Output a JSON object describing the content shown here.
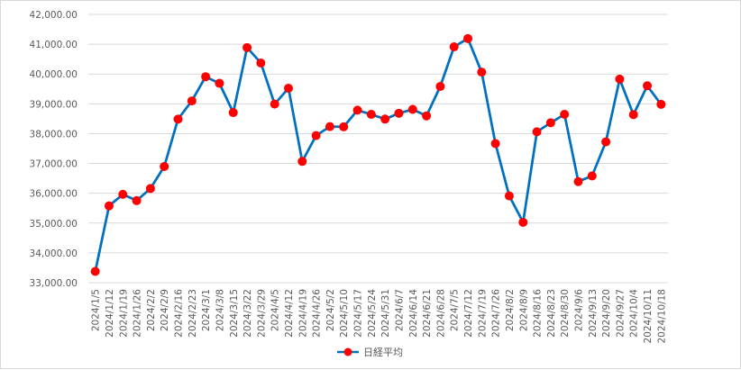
{
  "chart_data": {
    "type": "line",
    "categories": [
      "2024/1/5",
      "2024/1/12",
      "2024/1/19",
      "2024/1/26",
      "2024/2/2",
      "2024/2/9",
      "2024/2/16",
      "2024/2/23",
      "2024/3/1",
      "2024/3/8",
      "2024/3/15",
      "2024/3/22",
      "2024/3/29",
      "2024/4/5",
      "2024/4/12",
      "2024/4/19",
      "2024/4/26",
      "2024/5/2",
      "2024/5/10",
      "2024/5/17",
      "2024/5/24",
      "2024/5/31",
      "2024/6/7",
      "2024/6/14",
      "2024/6/21",
      "2024/6/28",
      "2024/7/5",
      "2024/7/12",
      "2024/7/19",
      "2024/7/26",
      "2024/8/2",
      "2024/8/9",
      "2024/8/16",
      "2024/8/23",
      "2024/8/30",
      "2024/9/6",
      "2024/9/13",
      "2024/9/20",
      "2024/9/27",
      "2024/10/4",
      "2024/10/11",
      "2024/10/18"
    ],
    "series": [
      {
        "name": "日経平均",
        "values": [
          33377,
          35577,
          35963,
          35751,
          36158,
          36897,
          38487,
          39098,
          39910,
          39688,
          38707,
          40888,
          40369,
          38992,
          39523,
          37068,
          37934,
          38236,
          38229,
          38787,
          38646,
          38488,
          38683,
          38814,
          38596,
          39583,
          40912,
          41190,
          40063,
          37667,
          35910,
          35025,
          38062,
          38364,
          38648,
          36391,
          36581,
          37724,
          39830,
          38636,
          39605,
          38982
        ],
        "color": "#0070C0",
        "marker_color": "#FF0000"
      }
    ],
    "ylim": [
      33000,
      42000
    ],
    "yticks": [
      "33,000.00",
      "34,000.00",
      "35,000.00",
      "36,000.00",
      "37,000.00",
      "38,000.00",
      "39,000.00",
      "40,000.00",
      "41,000.00",
      "42,000.00"
    ],
    "ytick_values": [
      33000,
      34000,
      35000,
      36000,
      37000,
      38000,
      39000,
      40000,
      41000,
      42000
    ],
    "grid": true,
    "legend_position": "bottom-center",
    "title": "",
    "xlabel": "",
    "ylabel": ""
  }
}
